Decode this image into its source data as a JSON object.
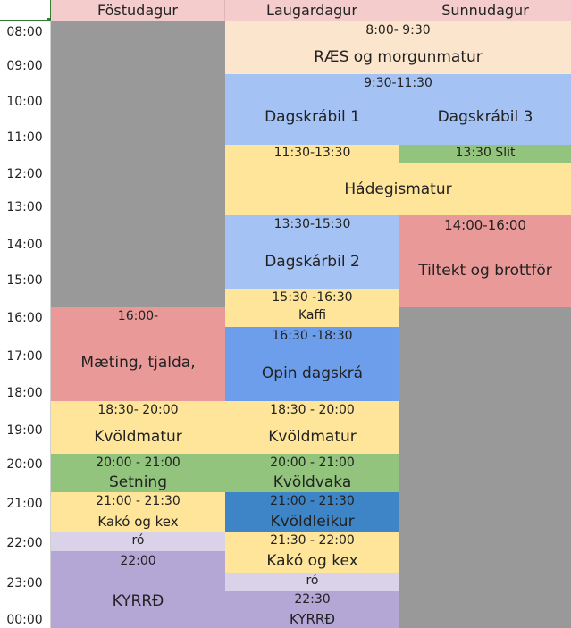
{
  "days": [
    "Föstudagur",
    "Laugardagur",
    "Sunnudagur"
  ],
  "times": [
    "08:00",
    "09:00",
    "10:00",
    "11:00",
    "12:00",
    "13:00",
    "14:00",
    "15:00",
    "16:00",
    "17:00",
    "18:00",
    "19:00",
    "20:00",
    "21:00",
    "22:00",
    "23:00",
    "00:00"
  ],
  "colors": {
    "header": "#f4cccc",
    "unused": "#999999",
    "breakfast": "#fce5cd",
    "program": "#a4c2f4",
    "open_program": "#6d9eeb",
    "evening_games": "#3d85c6",
    "meal": "#ffe599",
    "green_event": "#93c47d",
    "cleanup": "#ea9999",
    "quiet_light": "#d9d2e9",
    "quiet": "#b4a7d6"
  },
  "fri": {
    "arrival": {
      "time": "16:00-",
      "title": "Mæting, tjalda,"
    },
    "dinner": {
      "time": "18:30- 20:00",
      "title": "Kvöldmatur"
    },
    "opening": {
      "time": "20:00 - 21:00",
      "title": "Setning"
    },
    "cocoa": {
      "time": "21:00 - 21:30",
      "title": "Kakó og kex"
    },
    "ro": "ró",
    "quiet": {
      "time": "22:00",
      "title": "KYRRÐ"
    }
  },
  "sat": {
    "breakfast": {
      "time": "8:00- 9:30",
      "title": "RÆS og morgunmatur"
    },
    "program1": {
      "time": "9:30-11:30",
      "title": "Dagskrábil 1"
    },
    "lunch": {
      "time": "11:30-13:30",
      "title": "Hádegismatur"
    },
    "program2": {
      "time": "13:30-15:30",
      "title": "Dagskárbil 2"
    },
    "coffee": {
      "time": "15:30 -16:30",
      "title": "Kaffi"
    },
    "open": {
      "time": "16:30 -18:30",
      "title": "Opin dagskrá"
    },
    "dinner": {
      "time": "18:30 - 20:00",
      "title": "Kvöldmatur"
    },
    "evening": {
      "time": "20:00 - 21:00",
      "title": "Kvöldvaka"
    },
    "games": {
      "time": "21:00 - 21:30",
      "title": "Kvöldleikur"
    },
    "cocoa": {
      "time": "21:30 - 22:00",
      "title": "Kakó og kex"
    },
    "ro": "ró",
    "quiet": {
      "time": "22:30",
      "title": "KYRRÐ"
    }
  },
  "sun": {
    "program3": {
      "title": "Dagskrábil 3"
    },
    "slit": {
      "title": "13:30 Slit"
    },
    "cleanup": {
      "time": "14:00-16:00",
      "title": "Tiltekt og brottför"
    }
  }
}
